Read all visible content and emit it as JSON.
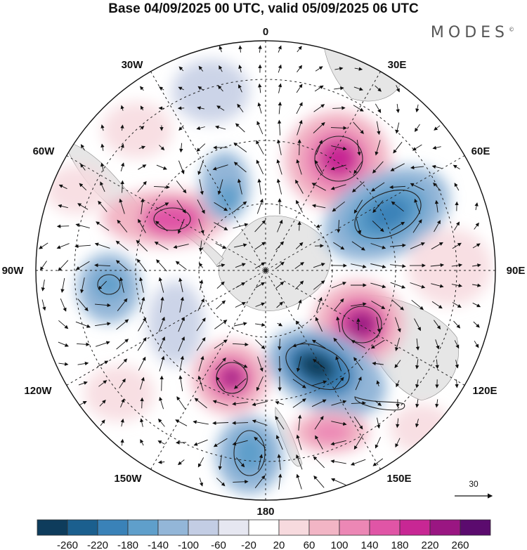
{
  "title": "Base 04/09/2025 00 UTC, valid 05/09/2025 06 UTC",
  "brand": "MODES",
  "brand_mark": "©",
  "longitude_labels": {
    "n": "0",
    "ne": "30E",
    "e60": "60E",
    "e90": "90E",
    "e120": "120E",
    "e150": "150E",
    "s": "180",
    "w150": "150W",
    "w120": "120W",
    "w90": "90W",
    "w60": "60W",
    "w30": "30W"
  },
  "vector_scale_label": "30",
  "colorbar": {
    "labels": [
      "-260",
      "-220",
      "-180",
      "-140",
      "-100",
      "-60",
      "-20",
      "20",
      "60",
      "100",
      "140",
      "180",
      "220",
      "260"
    ],
    "colors": [
      "#0e3c5c",
      "#1b5f8e",
      "#3a82b8",
      "#5f9fcb",
      "#93b6d8",
      "#c3cde4",
      "#e6e7f1",
      "#ffffff",
      "#f7dade",
      "#f2b5c5",
      "#ec87b5",
      "#e055a6",
      "#c82794",
      "#9a1682",
      "#5b0b6e"
    ]
  },
  "anomalies": [
    {
      "id": "pos-60e",
      "value": 220
    },
    {
      "id": "neg-75e",
      "value": -180
    },
    {
      "id": "pos-40w",
      "value": 180
    },
    {
      "id": "neg-90w",
      "value": -100
    },
    {
      "id": "neg-20w",
      "value": -140
    },
    {
      "id": "pos-105e",
      "value": 220
    },
    {
      "id": "neg-140e",
      "value": -260
    },
    {
      "id": "pos-150w",
      "value": 220
    },
    {
      "id": "neg-170e",
      "value": -140
    },
    {
      "id": "pos-155e",
      "value": 140
    }
  ]
}
